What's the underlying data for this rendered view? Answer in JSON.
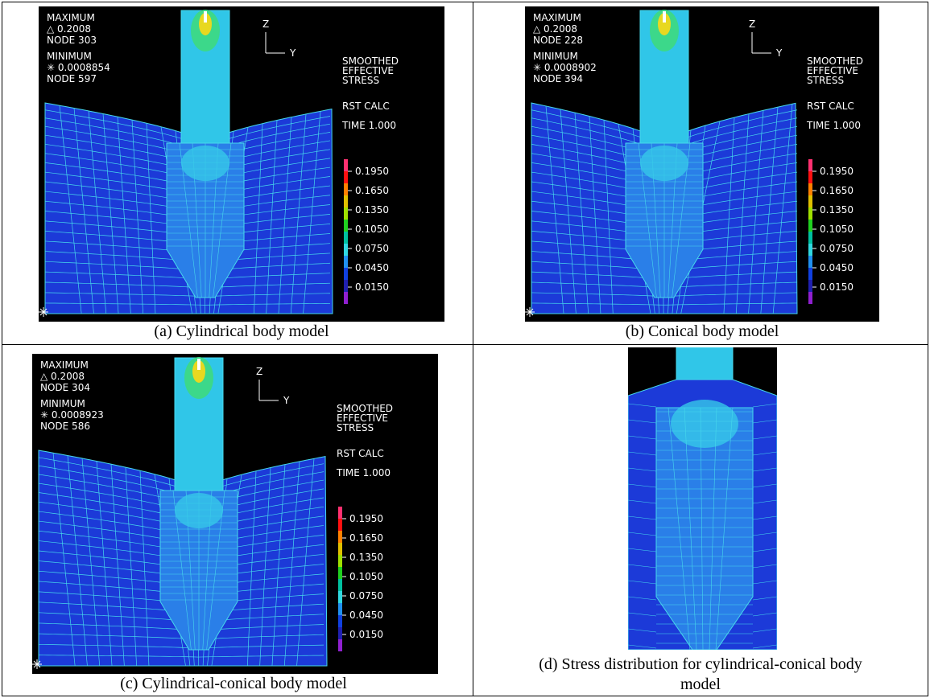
{
  "panels": [
    {
      "caption": "(a)  Cylindrical body model",
      "plot": {
        "max_label": "MAXIMUM",
        "max_value": "△ 0.2008",
        "max_node": "NODE 303",
        "min_label": "MINIMUM",
        "min_value": "✳ 0.0008854",
        "min_node": "NODE 597",
        "axis_z": "Z",
        "axis_y": "Y",
        "legend_title": [
          "SMOOTHED",
          "EFFECTIVE",
          "STRESS"
        ],
        "calc": "RST CALC",
        "time": "TIME 1.000",
        "scale": [
          "0.1950",
          "0.1650",
          "0.1350",
          "0.1050",
          "0.0750",
          "0.0450",
          "0.0150"
        ]
      }
    },
    {
      "caption": "(b)  Conical body model",
      "plot": {
        "max_label": "MAXIMUM",
        "max_value": "△ 0.2008",
        "max_node": "NODE 228",
        "min_label": "MINIMUM",
        "min_value": "✳ 0.0008902",
        "min_node": "NODE 394",
        "axis_z": "Z",
        "axis_y": "Y",
        "legend_title": [
          "SMOOTHED",
          "EFFECTIVE",
          "STRESS"
        ],
        "calc": "RST CALC",
        "time": "TIME 1.000",
        "scale": [
          "0.1950",
          "0.1650",
          "0.1350",
          "0.1050",
          "0.0750",
          "0.0450",
          "0.0150"
        ]
      }
    },
    {
      "caption": "(c)  Cylindrical-conical body model",
      "plot": {
        "max_label": "MAXIMUM",
        "max_value": "△ 0.2008",
        "max_node": "NODE 304",
        "min_label": "MINIMUM",
        "min_value": "✳ 0.0008923",
        "min_node": "NODE 586",
        "axis_z": "Z",
        "axis_y": "Y",
        "legend_title": [
          "SMOOTHED",
          "EFFECTIVE",
          "STRESS"
        ],
        "calc": "RST CALC",
        "time": "TIME 1.000",
        "scale": [
          "0.1950",
          "0.1650",
          "0.1350",
          "0.1050",
          "0.0750",
          "0.0450",
          "0.0150"
        ]
      }
    },
    {
      "caption": "(d)  Stress distribution for cylindrical-conical body model"
    }
  ]
}
